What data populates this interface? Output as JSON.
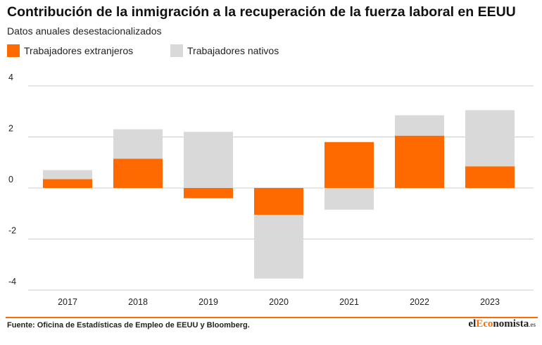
{
  "title": "Contribución de la inmigración a la recuperación de la fuerza laboral en EEUU",
  "subtitle": "Datos anuales desestacionalizados",
  "colors": {
    "foreign": "#ff6a00",
    "native": "#d9d9d9",
    "grid": "#cccccc",
    "accent": "#ff6a00"
  },
  "chart_data": {
    "type": "bar",
    "stacked": true,
    "categories": [
      "2017",
      "2018",
      "2019",
      "2020",
      "2021",
      "2022",
      "2023"
    ],
    "series": [
      {
        "name": "Trabajadores extranjeros",
        "color": "#ff6a00",
        "values": [
          0.35,
          1.15,
          -0.4,
          -1.05,
          1.8,
          2.05,
          0.85
        ]
      },
      {
        "name": "Trabajadores nativos",
        "color": "#d9d9d9",
        "values": [
          0.35,
          1.15,
          2.2,
          -2.5,
          -0.85,
          0.8,
          2.2
        ]
      }
    ],
    "ylim": [
      -4,
      4
    ],
    "yticks": [
      4,
      2,
      0,
      -2,
      -4
    ],
    "ytick_labels": [
      "4",
      "2",
      "0",
      "-2",
      "-4"
    ],
    "grid": true,
    "legend_position": "top-left"
  },
  "footer": {
    "source": "Fuente: Oficina de Estadísticas de Empleo de EEUU y Bloomberg.",
    "brand": {
      "part1": "el",
      "part2": "Eco",
      "part3": "nomista",
      "part4": ".es"
    }
  }
}
